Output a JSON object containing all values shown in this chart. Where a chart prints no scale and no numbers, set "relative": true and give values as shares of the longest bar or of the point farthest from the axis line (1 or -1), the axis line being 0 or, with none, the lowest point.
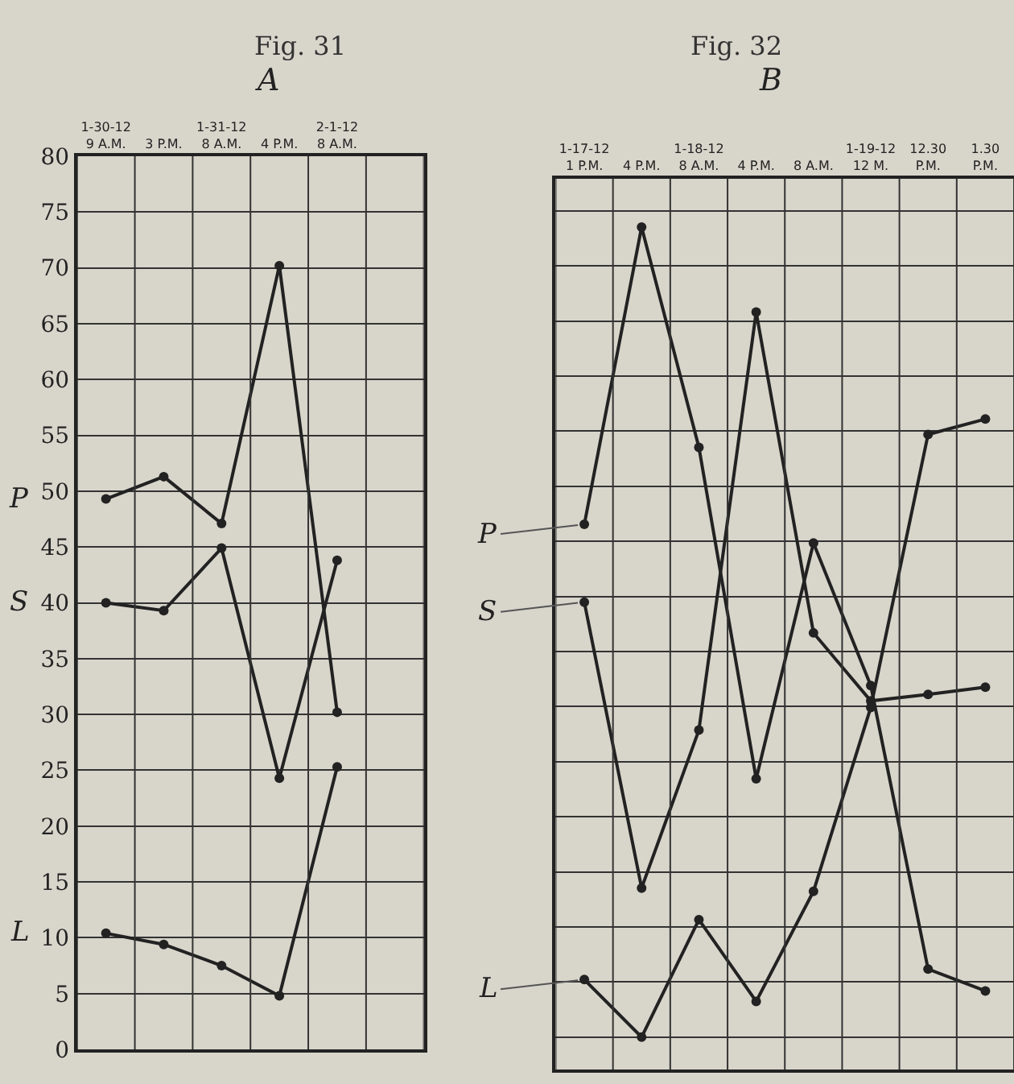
{
  "chart_data": [
    {
      "type": "line",
      "title": "Fig. 31",
      "subtitle": "A",
      "categories": [
        "1-30-12\n9 A.M.",
        "3 P.M.",
        "1-31-12\n8 A.M.",
        "4 P.M.",
        "2-1-12\n8 A.M.",
        null
      ],
      "series": [
        {
          "name": "P",
          "color": "#222222",
          "values": [
            49.3,
            51.3,
            47.1,
            70.2,
            30.2,
            null
          ]
        },
        {
          "name": "S",
          "color": "#222222",
          "values": [
            40,
            39.3,
            44.9,
            24.3,
            43.8,
            null
          ]
        },
        {
          "name": "L",
          "color": "#222222",
          "values": [
            10.4,
            9.4,
            7.5,
            4.8,
            25.3,
            null
          ]
        }
      ],
      "ylim": [
        0,
        80
      ],
      "yticks": [
        0,
        5,
        10,
        15,
        20,
        25,
        30,
        35,
        40,
        45,
        50,
        55,
        60,
        65,
        70,
        75,
        80
      ],
      "grid": true,
      "legend": false,
      "marker": "circle",
      "line_style": "solid"
    },
    {
      "type": "line",
      "title": "Fig. 32",
      "subtitle": "B",
      "categories": [
        "1-17-12\n1 P.M.",
        "4 P.M.",
        "1-18-12\n8 A.M.",
        "4 P.M.",
        "8 A.M.",
        "1-19-12\n12 M.",
        "12.30\nP.M.",
        "1.30\nP.M."
      ],
      "relative": true,
      "series": [
        {
          "name": "P",
          "color": "#222222",
          "values": [
            0.633,
            1,
            0.728,
            0.319,
            0.61,
            0.434,
            0.084,
            0.057
          ]
        },
        {
          "name": "S",
          "color": "#222222",
          "values": [
            0.537,
            0.184,
            0.379,
            0.895,
            0.499,
            0.415,
            0.423,
            0.432
          ]
        },
        {
          "name": "L",
          "color": "#222222",
          "values": [
            0.071,
            0,
            0.145,
            0.044,
            0.18,
            0.407,
            0.744,
            0.763
          ]
        }
      ],
      "grid": true,
      "legend": false,
      "marker": "circle",
      "line_style": "solid"
    }
  ]
}
